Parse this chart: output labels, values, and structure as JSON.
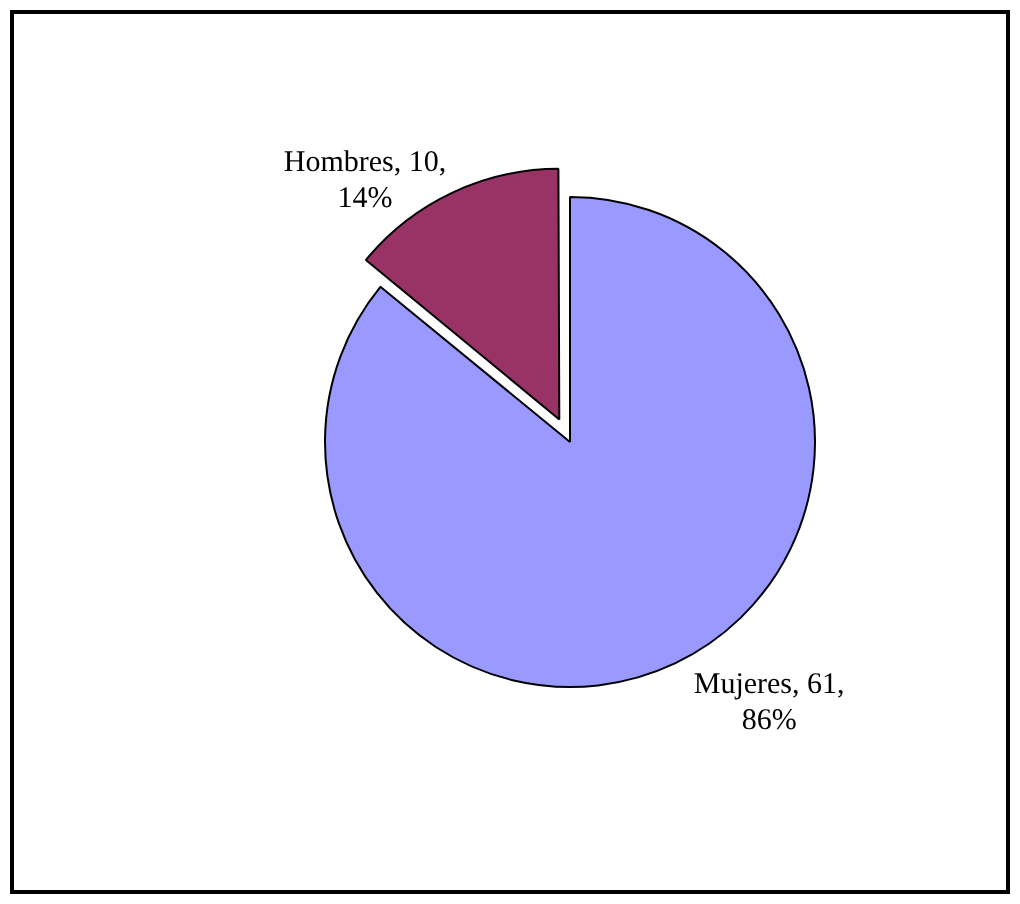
{
  "chart_data": {
    "type": "pie",
    "categories": [
      "Hombres",
      "Mujeres"
    ],
    "values": [
      10,
      61
    ],
    "colors": [
      "#993366",
      "#9999ff"
    ],
    "value_labels": [
      "10, 14%",
      "61, 86%"
    ],
    "legend": false
  }
}
